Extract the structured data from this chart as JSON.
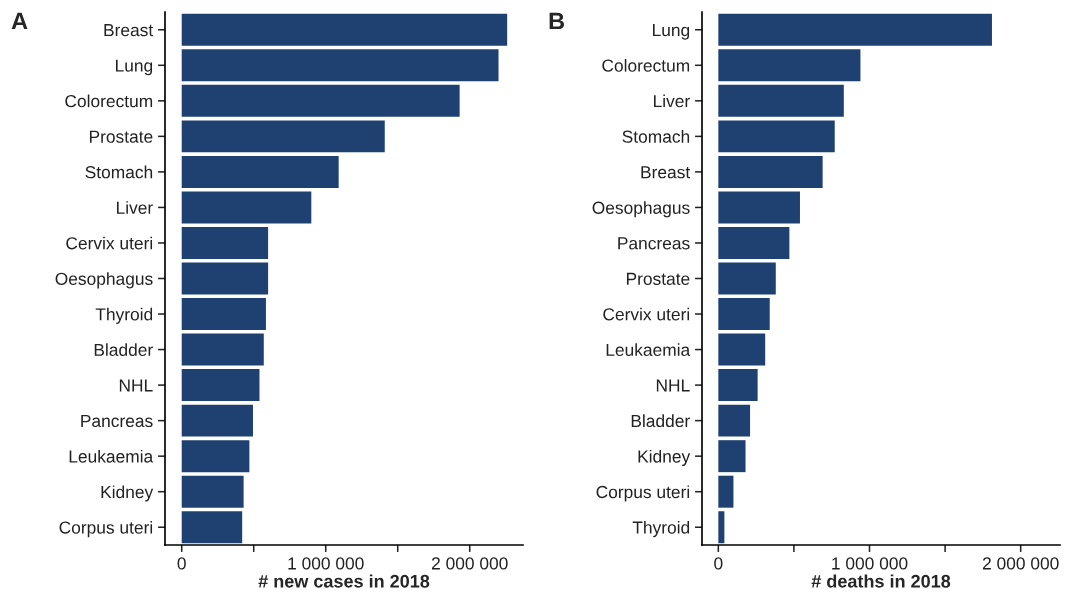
{
  "chart_data": [
    {
      "type": "bar",
      "orientation": "horizontal",
      "annotations": [
        "A"
      ],
      "xlabel": "# new cases in 2018",
      "categories": [
        "Breast",
        "Lung",
        "Colorectum",
        "Prostate",
        "Stomach",
        "Liver",
        "Cervix uteri",
        "Oesophagus",
        "Thyroid",
        "Bladder",
        "NHL",
        "Pancreas",
        "Leukaemia",
        "Kidney",
        "Corpus uteri"
      ],
      "values": [
        2260000,
        2200000,
        1930000,
        1410000,
        1090000,
        900000,
        600000,
        600000,
        585000,
        570000,
        540000,
        495000,
        470000,
        430000,
        420000
      ],
      "color": "#1f4172",
      "xlim": [
        -116000,
        2370000
      ],
      "xticks": [
        0,
        {
          "value": 500000,
          "label": null
        },
        {
          "value": 1000000,
          "label": "1 000 000"
        },
        {
          "value": 1500000,
          "label": null
        },
        {
          "value": 2000000,
          "label": "2 000 000"
        }
      ],
      "grid": false
    },
    {
      "type": "bar",
      "orientation": "horizontal",
      "annotations": [
        "B"
      ],
      "xlabel": "# deaths in 2018",
      "categories": [
        "Lung",
        "Colorectum",
        "Liver",
        "Stomach",
        "Breast",
        "Oesophagus",
        "Pancreas",
        "Prostate",
        "Cervix uteri",
        "Leukaemia",
        "NHL",
        "Bladder",
        "Kidney",
        "Corpus uteri",
        "Thyroid"
      ],
      "values": [
        1810000,
        940000,
        830000,
        770000,
        690000,
        540000,
        470000,
        380000,
        340000,
        310000,
        260000,
        210000,
        180000,
        100000,
        40000
      ],
      "color": "#1f4172",
      "xlim": [
        -108000,
        2260000
      ],
      "xticks": [
        0,
        {
          "value": 500000,
          "label": null
        },
        {
          "value": 1000000,
          "label": "1 000 000"
        },
        {
          "value": 1500000,
          "label": null
        },
        {
          "value": 2000000,
          "label": "2 000 000"
        }
      ],
      "grid": false
    }
  ]
}
